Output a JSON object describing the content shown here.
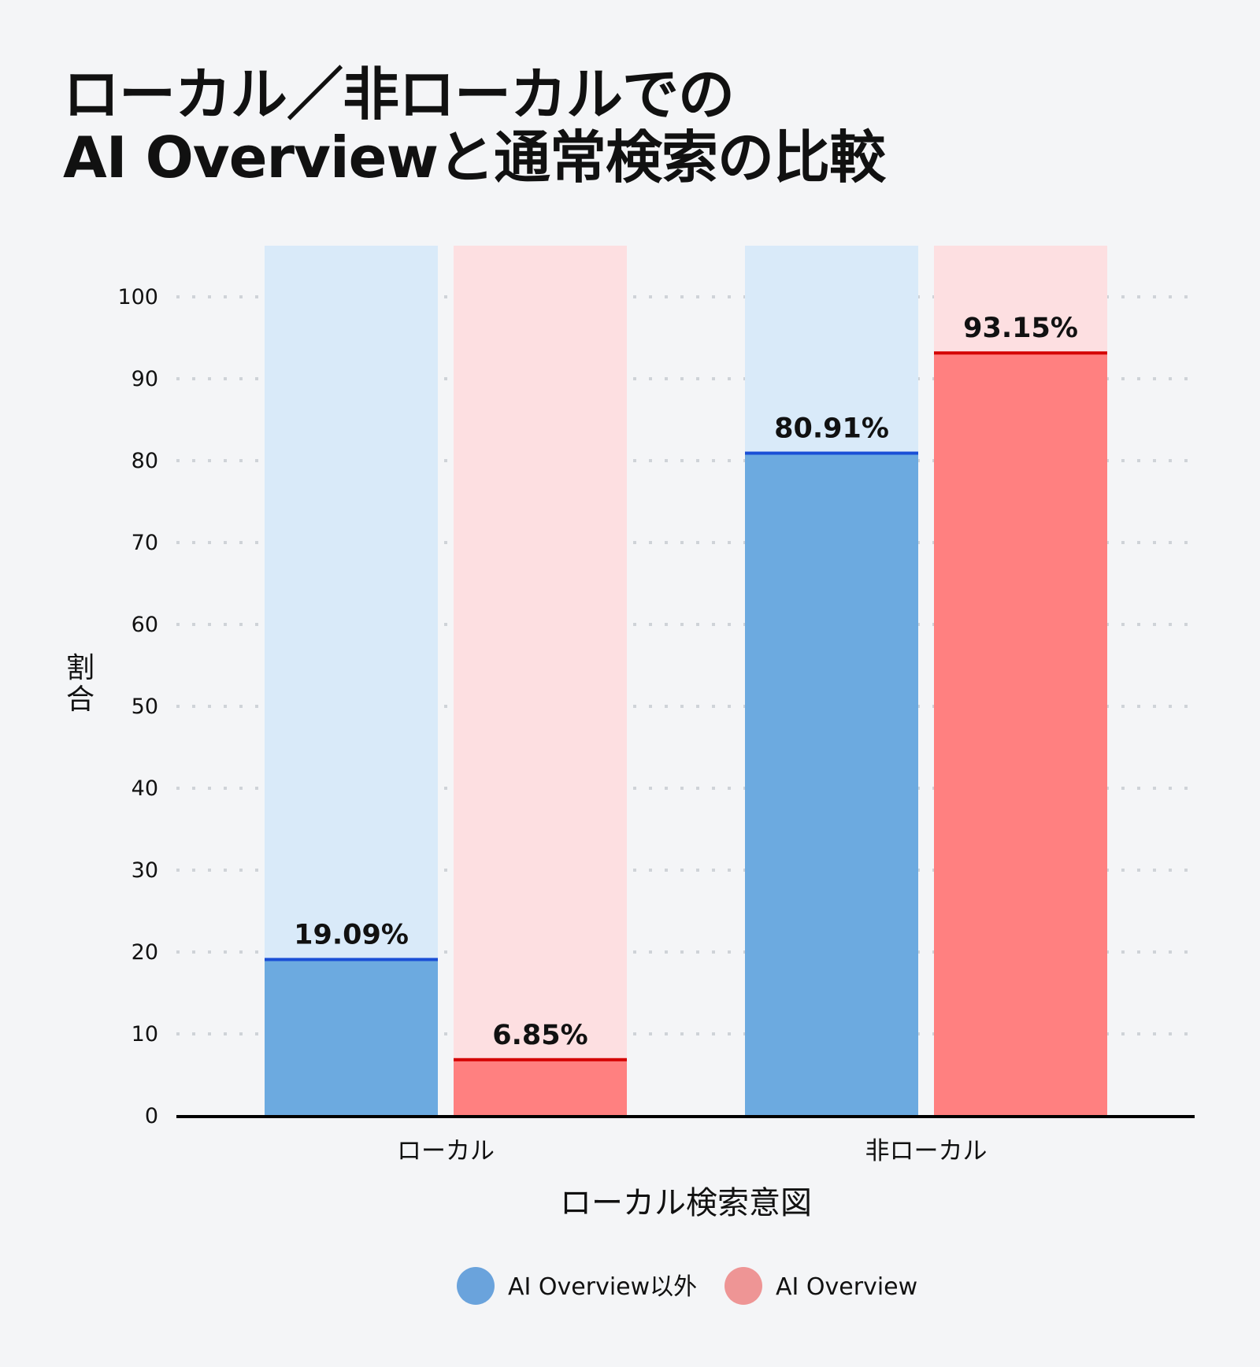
{
  "chart_data": {
    "type": "bar",
    "title_lines": [
      "ローカル／非ローカルでの",
      "AI Overviewと通常検索の比較"
    ],
    "xlabel": "ローカル検索意図",
    "ylabel": "割合",
    "categories": [
      "ローカル",
      "非ローカル"
    ],
    "series": [
      {
        "name": "AI Overview以外",
        "values": [
          19.09,
          80.91
        ],
        "labels": [
          "19.09%",
          "80.91%"
        ]
      },
      {
        "name": "AI Overview",
        "values": [
          6.85,
          93.15
        ],
        "labels": [
          "6.85%",
          "93.15%"
        ]
      }
    ],
    "ylim": [
      0,
      100
    ],
    "yticks": [
      "0",
      "10",
      "20",
      "30",
      "40",
      "50",
      "60",
      "70",
      "80",
      "90",
      "100"
    ],
    "grid": true,
    "legend_position": "bottom",
    "colors": {
      "background": "#f4f5f7",
      "series_fill": [
        "#6caae0",
        "#ff8080"
      ],
      "series_track": [
        "#d9eaf9",
        "#fddfe1"
      ],
      "series_line": [
        "#1a4fd6",
        "#d40000"
      ],
      "legend_marker": [
        "#6aa3dc",
        "#ee9595"
      ]
    }
  }
}
